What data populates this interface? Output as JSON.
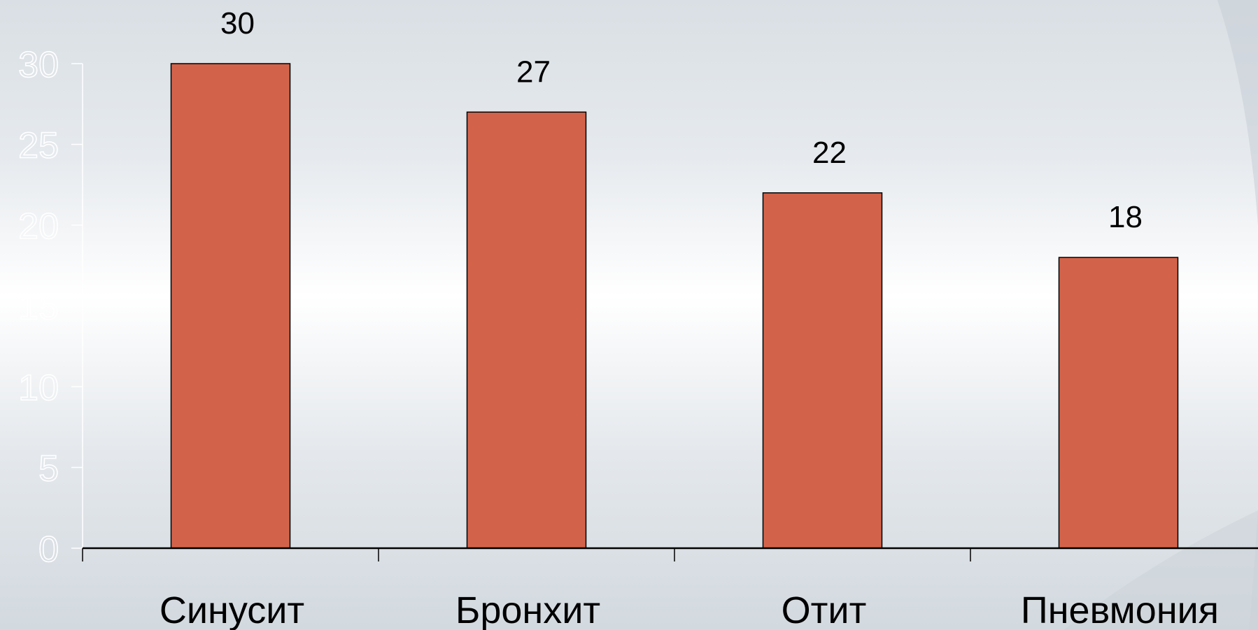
{
  "chart_data": {
    "type": "bar",
    "categories": [
      "Синусит",
      "Бронхит",
      "Отит",
      "Пневмония"
    ],
    "values": [
      30,
      27,
      22,
      18
    ],
    "data_labels": [
      "30",
      "27",
      "22",
      "18"
    ],
    "y_ticks": [
      "0",
      "5",
      "10",
      "15",
      "20",
      "25",
      "30"
    ],
    "ylim": [
      0,
      30
    ],
    "title": "",
    "xlabel": "",
    "ylabel": "",
    "grid": false,
    "legend": "none",
    "colors": {
      "bar": "#d2634a",
      "bar_outline": "#000000",
      "axis": "#000000",
      "y_axis": "#ffffff",
      "tick_text": "#ffffff"
    }
  }
}
